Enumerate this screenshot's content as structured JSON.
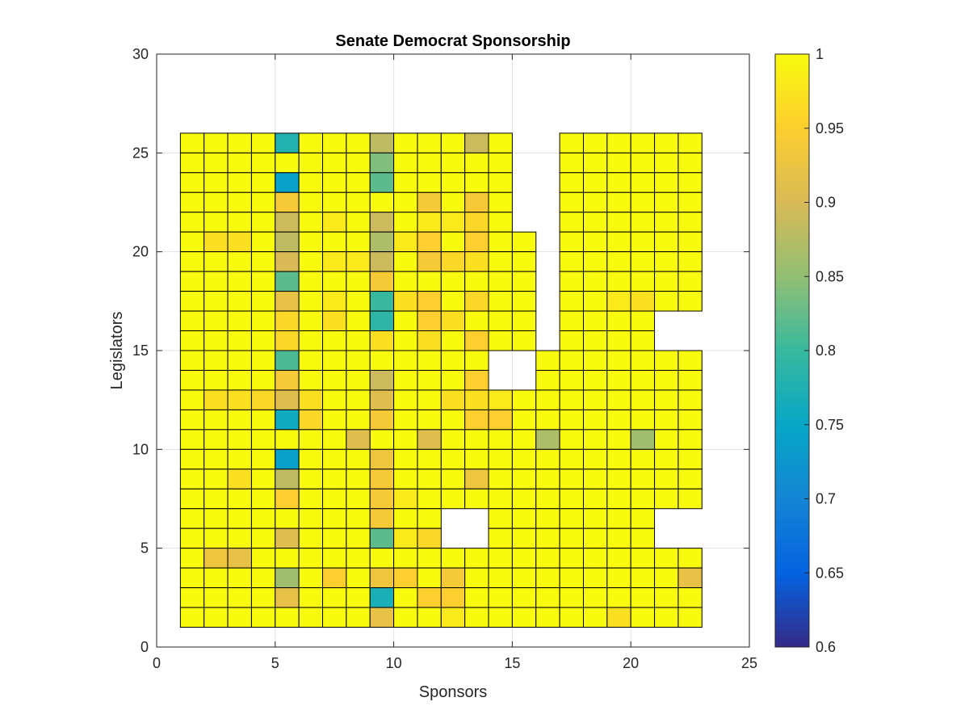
{
  "chart_data": {
    "type": "heatmap",
    "title": "Senate Democrat Sponsorship",
    "xlabel": "Sponsors",
    "ylabel": "Legislators",
    "xlim": [
      0,
      25
    ],
    "ylim": [
      0,
      30
    ],
    "x_ticks": [
      "0",
      "5",
      "10",
      "15",
      "20",
      "25"
    ],
    "y_ticks": [
      "0",
      "5",
      "10",
      "15",
      "20",
      "25",
      "30"
    ],
    "grid": true,
    "grid_x": [
      1,
      2,
      3,
      4,
      5,
      6,
      7,
      8,
      9,
      10,
      11,
      12,
      13,
      14,
      15,
      16,
      17,
      18,
      19,
      20,
      21,
      22,
      23
    ],
    "grid_y": [
      1,
      2,
      3,
      4,
      5,
      6,
      7,
      8,
      9,
      10,
      11,
      12,
      13,
      14,
      15,
      16,
      17,
      18,
      19,
      20,
      21,
      22,
      23,
      24,
      25,
      26
    ],
    "colorbar": {
      "min": 0.6,
      "max": 1,
      "ticks": [
        "0.6",
        "0.65",
        "0.7",
        "0.75",
        "0.8",
        "0.85",
        "0.9",
        "0.95",
        "1"
      ],
      "colormap": "parula"
    },
    "matrix_rows_top_to_bottom": [
      "1 1 1 1 0.78 1 1 1 0.88 1 1 1 0.89 1 - - 1 1 1 1 1 1 1",
      "1 1 1 1 1 1 1 1 0.84 1 1 1 1 1 - - 1 1 1 1 1 1 1",
      "1 1 1 1 0.74 1 1 1 0.82 1 1 1 1 1 - - 1 1 1 1 1 1 1",
      "1 1 1 1 0.94 1 1 1 1 1 0.94 1 0.94 1 - - 1 1 1 1 1 1 1",
      "1 1 1 1 0.89 1 0.98 1 0.89 1 0.98 0.98 0.96 1 - - 1 1 1 1 1 1 1",
      "1 0.97 0.97 1 0.88 1 1 1 0.87 0.98 0.95 1 0.95 1 1 - 1 1 1 1 1 1 1",
      "1 1 1 1 0.9 1 0.98 0.98 0.89 1 0.94 0.96 0.97 1 1 - 1 1 1 1 1 1 1",
      "1 1 1 1 0.82 1 1 1 0.94 1 1 1 1 1 1 - 1 1 1 1 1 1 1",
      "1 1 1 1 0.92 1 0.98 1 0.8 0.97 0.95 1 0.96 1 1 - 1 1 0.98 0.97 1 1 1",
      "1 1 1 1 0.96 1 0.97 1 0.79 1 0.95 0.97 1 1 1 - 1 1 1 1 - - -",
      "1 1 1 1 0.96 1 1 1 0.97 1 0.97 1 0.95 1 1 - 1 1 1 1 - - -",
      "1 1 1 1 0.81 1 1 1 1 1 1 1 1 - - 1 1 1 1 1 1 1 1",
      "1 1 1 1 0.94 1 1 1 0.89 1 1 1 0.95 - - 1 1 1 1 1 1 1 1",
      "1 0.97 0.97 0.96 0.91 0.97 1 1 0.91 1 1 0.97 0.97 0.98 1 1 1 1 1 1 1 1 1",
      "1 1 1 1 0.76 0.96 1 1 0.94 1 1 1 0.95 0.95 1 1 1 1 1 1 1 1 1",
      "1 1 1 1 1 1 1 0.91 1 1 0.91 1 1 1 1 0.87 1 1 1 0.86 1 1 1",
      "1 1 1 1 0.74 1 1 1 0.93 1 1 1 1 1 1 1 1 1 1 1 1 1 1",
      "1 1 0.97 1 0.88 1 1 1 0.94 1 1 1 0.93 1 1 1 1 1 1 1 1 1 1",
      "1 1 1 1 0.95 1 1 1 0.94 0.98 1 1 1 1 1 1 1 1 1 1 1 1 1",
      "1 1 1 1 1 1 1 1 0.94 1 1 - - 1 1 1 1 1 1 1 - - -",
      "1 1 1 1 0.91 1 1 1 0.82 0.98 0.96 - - 1 1 1 1 1 1 1 - - -",
      "1 0.93 0.92 1 1 1 1 1 1 1 1 1 1 1 1 1 1 1 1 1 1 1 1",
      "1 1 1 1 0.86 1 0.95 1 0.93 0.95 1 0.94 1 1 1 1 1 1 1 1 1 0.92 1",
      "1 1 1 1 0.92 1 1 1 0.77 1 0.95 0.95 1 1 1 1 1 1 1 1 1 1 1",
      "1 1 1 1 1 1 1 1 0.92 1 1 0.98 1 1 1 1 1 1 0.97 1 1 1 1"
    ]
  }
}
